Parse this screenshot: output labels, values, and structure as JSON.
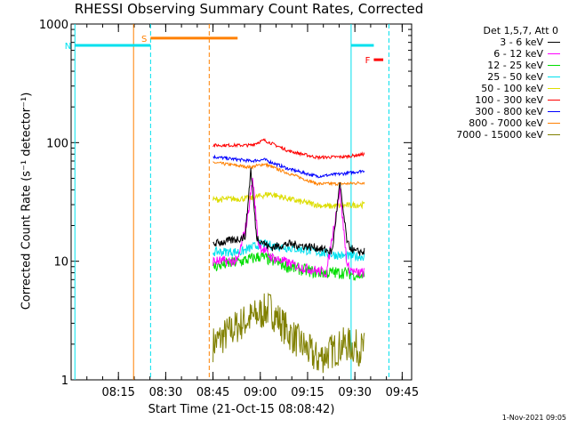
{
  "chart_data": {
    "type": "line",
    "title": "RHESSI Observing Summary Count Rates, Corrected",
    "xlabel": "Start Time (21-Oct-15 08:08:42)",
    "ylabel": "Corrected Count Rate (s⁻¹ detector⁻¹)",
    "yscale": "log",
    "ylim": [
      1,
      1000
    ],
    "y_ticks": [
      1,
      10,
      100,
      1000
    ],
    "y_tick_labels": [
      "1",
      "10",
      "100",
      "1000"
    ],
    "xlim_min": [
      8.0,
      9.8
    ],
    "x_ticks": [
      8.25,
      8.5,
      8.75,
      9.0,
      9.25,
      9.5,
      9.75
    ],
    "x_tick_labels": [
      "08:15",
      "08:30",
      "08:45",
      "09:00",
      "09:15",
      "09:30",
      "09:45"
    ],
    "stamp": "1-Nov-2021 09:05",
    "legend_header": "Det 1,5,7, Att 0",
    "flags": [
      {
        "label": "S",
        "color": "#ff8000",
        "x_start": 8.42,
        "x_end": 8.88,
        "y": 760
      },
      {
        "label": "N",
        "color": "#00e0ee",
        "x_start": 8.02,
        "x_end": 8.42,
        "y": 660
      },
      {
        "label": "F",
        "color": "#ff0000",
        "x_start": 9.6,
        "x_end": 9.65,
        "y": 500
      },
      {
        "label": "",
        "color": "#00e0ee",
        "x_start": 9.48,
        "x_end": 9.6,
        "y": 660
      }
    ],
    "vertical_lines": [
      {
        "x": 8.02,
        "color": "#00e0ee",
        "style": "solid"
      },
      {
        "x": 8.33,
        "color": "#ff8000",
        "style": "solid"
      },
      {
        "x": 8.42,
        "color": "#00e0ee",
        "style": "dashed"
      },
      {
        "x": 8.73,
        "color": "#ff8000",
        "style": "dashed"
      },
      {
        "x": 9.48,
        "color": "#00e0ee",
        "style": "solid"
      },
      {
        "x": 9.68,
        "color": "#00e0ee",
        "style": "dashed"
      }
    ],
    "series": [
      {
        "name": "3 - 6 keV",
        "color": "#000000",
        "x_range": [
          8.75,
          9.55
        ],
        "noise": 0.08,
        "points": [
          [
            8.75,
            14
          ],
          [
            8.85,
            15
          ],
          [
            8.92,
            16
          ],
          [
            8.95,
            60
          ],
          [
            8.98,
            16
          ],
          [
            9.05,
            13
          ],
          [
            9.15,
            14
          ],
          [
            9.3,
            13
          ],
          [
            9.38,
            12
          ],
          [
            9.42,
            45
          ],
          [
            9.46,
            14
          ],
          [
            9.5,
            12
          ],
          [
            9.55,
            12
          ]
        ]
      },
      {
        "name": "6 - 12 keV",
        "color": "#ff00ff",
        "x_range": [
          8.75,
          9.55
        ],
        "noise": 0.1,
        "points": [
          [
            8.75,
            10
          ],
          [
            8.88,
            10
          ],
          [
            8.93,
            22
          ],
          [
            8.96,
            50
          ],
          [
            8.99,
            14
          ],
          [
            9.05,
            11
          ],
          [
            9.2,
            9
          ],
          [
            9.35,
            8
          ],
          [
            9.42,
            40
          ],
          [
            9.46,
            9
          ],
          [
            9.5,
            8
          ],
          [
            9.55,
            8
          ]
        ]
      },
      {
        "name": "12 - 25 keV",
        "color": "#00dd00",
        "x_range": [
          8.75,
          9.55
        ],
        "noise": 0.12,
        "points": [
          [
            8.75,
            9
          ],
          [
            8.9,
            10
          ],
          [
            9.0,
            11
          ],
          [
            9.15,
            9
          ],
          [
            9.3,
            8
          ],
          [
            9.45,
            8
          ],
          [
            9.55,
            7.5
          ]
        ]
      },
      {
        "name": "25 - 50 keV",
        "color": "#00e0ee",
        "x_range": [
          8.75,
          9.55
        ],
        "noise": 0.09,
        "points": [
          [
            8.75,
            12
          ],
          [
            8.9,
            12
          ],
          [
            9.0,
            14
          ],
          [
            9.15,
            13
          ],
          [
            9.3,
            12
          ],
          [
            9.45,
            11
          ],
          [
            9.55,
            11
          ]
        ]
      },
      {
        "name": "50 - 100 keV",
        "color": "#dddd00",
        "x_range": [
          8.75,
          9.55
        ],
        "noise": 0.06,
        "points": [
          [
            8.75,
            33
          ],
          [
            8.95,
            34
          ],
          [
            9.05,
            37
          ],
          [
            9.2,
            32
          ],
          [
            9.35,
            29
          ],
          [
            9.55,
            30
          ]
        ]
      },
      {
        "name": "100 - 300 keV",
        "color": "#ff0000",
        "x_range": [
          8.75,
          9.55
        ],
        "noise": 0.03,
        "points": [
          [
            8.75,
            95
          ],
          [
            8.95,
            95
          ],
          [
            9.02,
            105
          ],
          [
            9.15,
            85
          ],
          [
            9.3,
            75
          ],
          [
            9.45,
            76
          ],
          [
            9.55,
            80
          ]
        ]
      },
      {
        "name": "300 - 800 keV",
        "color": "#0000ff",
        "x_range": [
          8.75,
          9.55
        ],
        "noise": 0.03,
        "points": [
          [
            8.75,
            76
          ],
          [
            8.95,
            70
          ],
          [
            9.02,
            72
          ],
          [
            9.15,
            60
          ],
          [
            9.3,
            52
          ],
          [
            9.45,
            55
          ],
          [
            9.55,
            58
          ]
        ]
      },
      {
        "name": "800 - 7000 keV",
        "color": "#ff8000",
        "x_range": [
          8.75,
          9.55
        ],
        "noise": 0.03,
        "points": [
          [
            8.75,
            68
          ],
          [
            8.95,
            62
          ],
          [
            9.02,
            66
          ],
          [
            9.15,
            55
          ],
          [
            9.3,
            45
          ],
          [
            9.45,
            45
          ],
          [
            9.55,
            46
          ]
        ]
      },
      {
        "name": "7000 - 15000 keV",
        "color": "#808000",
        "x_range": [
          8.75,
          9.55
        ],
        "noise": 0.35,
        "points": [
          [
            8.75,
            2
          ],
          [
            8.9,
            3
          ],
          [
            9.05,
            4
          ],
          [
            9.15,
            2.5
          ],
          [
            9.3,
            1.5
          ],
          [
            9.45,
            2
          ],
          [
            9.55,
            1.8
          ]
        ]
      }
    ]
  }
}
